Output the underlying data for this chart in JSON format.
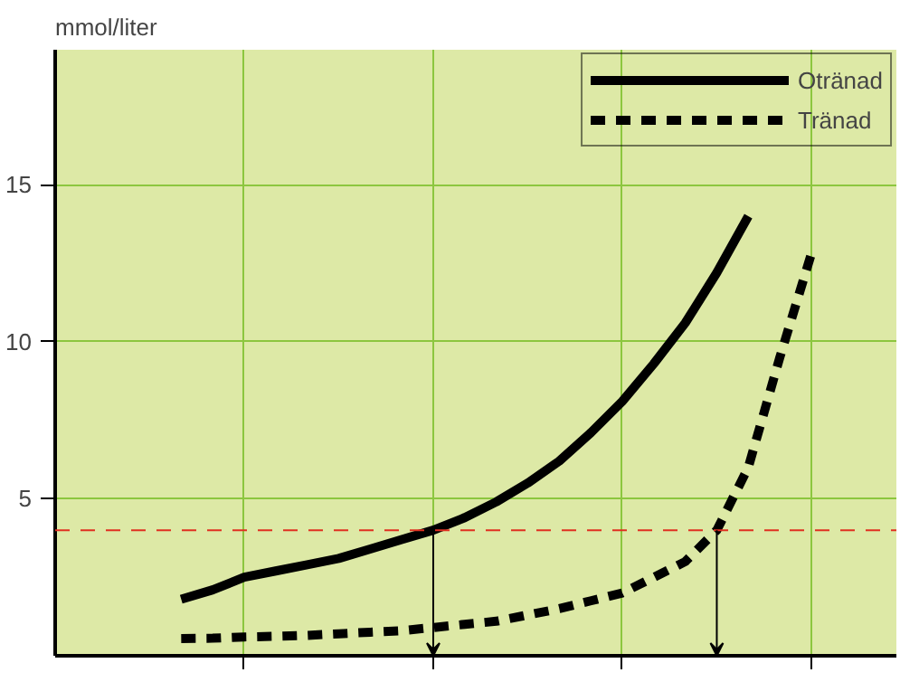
{
  "chart_data": {
    "type": "line",
    "ylabel": "mmol/liter",
    "categories": [
      null,
      null,
      null,
      null,
      null,
      null,
      null,
      null,
      null,
      null,
      null,
      null,
      null,
      null,
      null,
      null,
      null,
      null,
      null,
      null,
      null
    ],
    "ylim": [
      0,
      19.3
    ],
    "yticks": [
      5,
      10,
      15
    ],
    "grid": true,
    "legend": "top right",
    "ref_lines": [
      {
        "axis": "y",
        "value": 4,
        "color": "#e03020",
        "line_style": "dashed"
      }
    ],
    "series": [
      {
        "name": "Otränad",
        "color": "#000000",
        "line_style": "solid",
        "values": [
          1.8,
          2.1,
          2.5,
          2.7,
          2.9,
          3.1,
          3.4,
          3.7,
          4,
          4.4,
          4.9,
          5.5,
          6.2,
          7.1,
          8.1,
          9.3,
          10.6,
          12.2,
          14.0,
          null,
          null
        ]
      },
      {
        "name": "Tränad",
        "color": "#000000",
        "line_style": "dashed",
        "values": [
          0.55,
          0.56,
          0.6,
          0.62,
          0.65,
          0.7,
          0.75,
          0.8,
          0.9,
          1.0,
          1.1,
          1.3,
          1.5,
          1.75,
          2.0,
          2.5,
          3.0,
          4,
          6.0,
          9.5,
          12.8
        ]
      }
    ]
  }
}
